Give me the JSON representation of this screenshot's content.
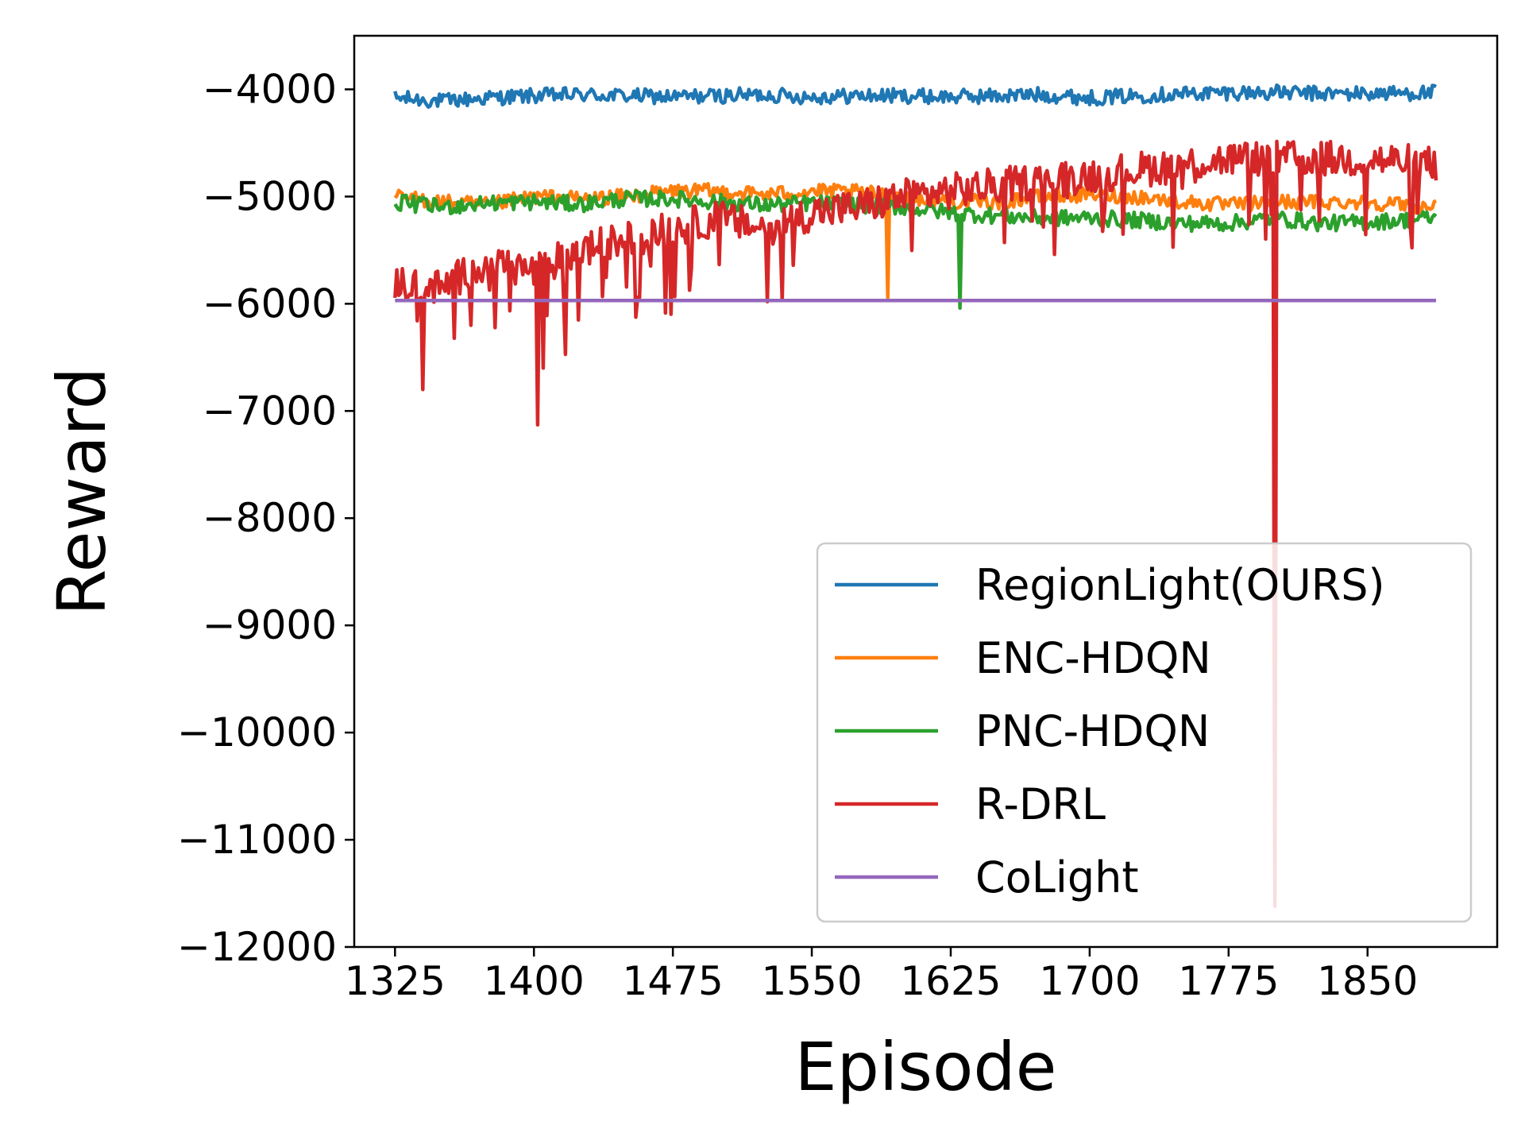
{
  "chart_data": {
    "type": "line",
    "xlabel": "Episode",
    "ylabel": "Reward",
    "xlim": [
      1303,
      1920
    ],
    "ylim": [
      -12000,
      -3500
    ],
    "xticks": [
      1325,
      1400,
      1475,
      1550,
      1625,
      1700,
      1775,
      1850
    ],
    "yticks": [
      -4000,
      -5000,
      -6000,
      -7000,
      -8000,
      -9000,
      -10000,
      -11000,
      -12000
    ],
    "ytick_labels": [
      "−4000",
      "−5000",
      "−6000",
      "−7000",
      "−8000",
      "−9000",
      "−10000",
      "−11000",
      "−12000"
    ],
    "grid": false,
    "legend_position": "lower-right",
    "series": [
      {
        "name": "RegionLight(OURS)",
        "color": "#1f77b4",
        "x": [
          1325,
          1350,
          1375,
          1400,
          1425,
          1450,
          1475,
          1500,
          1525,
          1550,
          1575,
          1600,
          1625,
          1650,
          1675,
          1700,
          1725,
          1750,
          1775,
          1800,
          1825,
          1850,
          1887
        ],
        "y": [
          -4080,
          -4110,
          -4080,
          -4060,
          -4050,
          -4060,
          -4070,
          -4060,
          -4050,
          -4070,
          -4060,
          -4060,
          -4070,
          -4060,
          -4050,
          -4080,
          -4060,
          -4040,
          -4030,
          -4030,
          -4040,
          -4040,
          -4030
        ]
      },
      {
        "name": "ENC-HDQN",
        "color": "#ff7f0e",
        "x": [
          1325,
          1350,
          1375,
          1400,
          1425,
          1450,
          1475,
          1500,
          1525,
          1550,
          1575,
          1600,
          1625,
          1650,
          1675,
          1700,
          1725,
          1750,
          1775,
          1800,
          1825,
          1850,
          1887
        ],
        "y": [
          -5000,
          -5050,
          -5080,
          -5000,
          -5020,
          -5000,
          -4950,
          -4950,
          -4980,
          -4950,
          -4960,
          -5000,
          -5050,
          -5050,
          -5000,
          -4980,
          -5000,
          -5050,
          -5080,
          -5050,
          -5050,
          -5050,
          -5100
        ]
      },
      {
        "name": "PNC-HDQN",
        "color": "#2ca02c",
        "x": [
          1325,
          1350,
          1375,
          1400,
          1425,
          1450,
          1475,
          1500,
          1525,
          1550,
          1575,
          1600,
          1625,
          1650,
          1675,
          1700,
          1725,
          1750,
          1775,
          1800,
          1825,
          1850,
          1887
        ],
        "y": [
          -5050,
          -5100,
          -5060,
          -5050,
          -5070,
          -5020,
          -5020,
          -5050,
          -5080,
          -5060,
          -5080,
          -5100,
          -5150,
          -5180,
          -5200,
          -5200,
          -5220,
          -5250,
          -5250,
          -5200,
          -5250,
          -5240,
          -5200
        ]
      },
      {
        "name": "R-DRL",
        "color": "#d62728",
        "x": [
          1325,
          1350,
          1375,
          1400,
          1425,
          1450,
          1475,
          1500,
          1525,
          1550,
          1575,
          1600,
          1625,
          1650,
          1675,
          1700,
          1725,
          1750,
          1775,
          1800,
          1825,
          1850,
          1887
        ],
        "y": [
          -5800,
          -5850,
          -5600,
          -5700,
          -5500,
          -5400,
          -5300,
          -5200,
          -5300,
          -5150,
          -5100,
          -5000,
          -4950,
          -4900,
          -4850,
          -4800,
          -4750,
          -4700,
          -4650,
          -4650,
          -4650,
          -4650,
          -4700
        ]
      },
      {
        "name": "CoLight",
        "color": "#9467bd",
        "x": [
          1325,
          1887
        ],
        "y": [
          -5970,
          -5970
        ]
      }
    ],
    "annotations": {
      "spikes": [
        {
          "series": "R-DRL",
          "x": 1340,
          "y": -6800
        },
        {
          "series": "R-DRL",
          "x": 1402,
          "y": -7130
        },
        {
          "series": "R-DRL",
          "x": 1405,
          "y": -6600
        },
        {
          "series": "R-DRL",
          "x": 1800,
          "y": -11620
        },
        {
          "series": "ENC-HDQN",
          "x": 1591,
          "y": -5940
        },
        {
          "series": "PNC-HDQN",
          "x": 1630,
          "y": -6040
        }
      ]
    }
  }
}
